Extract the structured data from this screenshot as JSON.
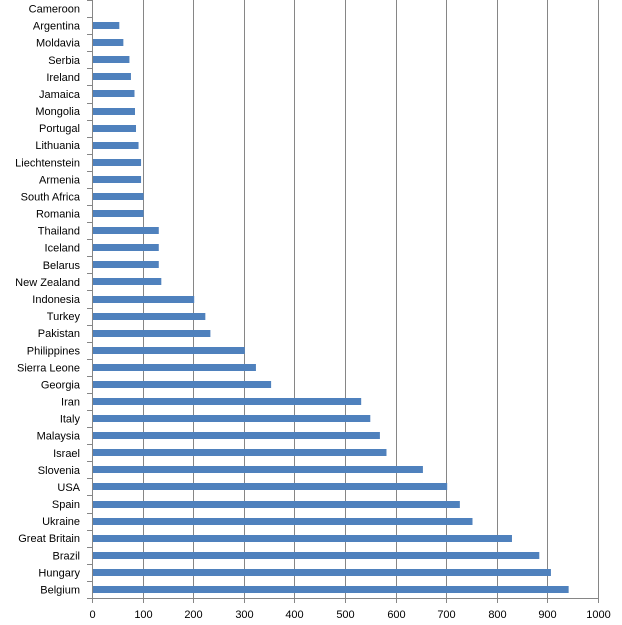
{
  "chart_data": {
    "type": "bar",
    "orientation": "horizontal",
    "categories": [
      "Cameroon",
      "Argentina",
      "Moldavia",
      "Serbia",
      "Ireland",
      "Jamaica",
      "Mongolia",
      "Portugal",
      "Lithuania",
      "Liechtenstein",
      "Armenia",
      "South Africa",
      "Romania",
      "Thailand",
      "Iceland",
      "Belarus",
      "New Zealand",
      "Indonesia",
      "Turkey",
      "Pakistan",
      "Philippines",
      "Sierra Leone",
      "Georgia",
      "Iran",
      "Italy",
      "Malaysia",
      "Israel",
      "Slovenia",
      "USA",
      "Spain",
      "Ukraine",
      "Great Britain",
      "Brazil",
      "Hungary",
      "Belgium"
    ],
    "values": [
      0,
      52,
      60,
      72,
      75,
      82,
      83,
      85,
      90,
      95,
      95,
      100,
      100,
      130,
      130,
      130,
      135,
      200,
      222,
      232,
      300,
      322,
      352,
      530,
      548,
      567,
      580,
      652,
      700,
      725,
      750,
      828,
      882,
      905,
      940
    ],
    "xlim": [
      0,
      1000
    ],
    "xticks": [
      0,
      100,
      200,
      300,
      400,
      500,
      600,
      700,
      800,
      900,
      1000
    ],
    "xtick_labels": [
      "0",
      "100",
      "200",
      "300",
      "400",
      "500",
      "600",
      "700",
      "800",
      "900",
      "1000"
    ],
    "title": "",
    "xlabel": "",
    "ylabel": "",
    "grid": "vertical",
    "legend": "none",
    "colors": {
      "bar": "#4f81bd",
      "grid": "#868686",
      "axis": "#868686"
    }
  }
}
